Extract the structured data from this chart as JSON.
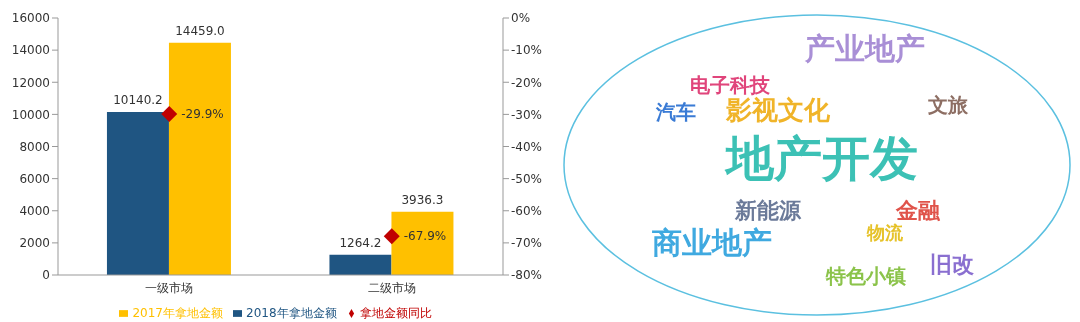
{
  "chart_data": [
    {
      "type": "bar",
      "categories": [
        "一级市场",
        "二级市场"
      ],
      "series": [
        {
          "name": "2018年拿地金额",
          "color": "#1f5582",
          "values": [
            10140.2,
            1264.2
          ],
          "value_labels": [
            "10140.2",
            "1264.2"
          ]
        },
        {
          "name": "2017年拿地金额",
          "color": "#ffc000",
          "values": [
            14459.0,
            3936.3
          ],
          "value_labels": [
            "14459.0",
            "3936.3"
          ]
        },
        {
          "name": "拿地金额同比",
          "type": "scatter",
          "axis": "y2",
          "color": "#c00000",
          "marker": "diamond",
          "values": [
            -29.9,
            -67.9
          ],
          "value_labels": [
            "-29.9%",
            "-67.9%"
          ]
        }
      ],
      "ylim": [
        0,
        16000
      ],
      "yticks": [
        0,
        2000,
        4000,
        6000,
        8000,
        10000,
        12000,
        14000,
        16000
      ],
      "y2lim": [
        -80,
        0
      ],
      "y2ticks": [
        {
          "value": 0,
          "label": "0%"
        },
        {
          "value": -10,
          "label": "-10%"
        },
        {
          "value": -20,
          "label": "-20%"
        },
        {
          "value": -30,
          "label": "-30%"
        },
        {
          "value": -40,
          "label": "-40%"
        },
        {
          "value": -50,
          "label": "-50%"
        },
        {
          "value": -60,
          "label": "-60%"
        },
        {
          "value": -70,
          "label": "-70%"
        },
        {
          "value": -80,
          "label": "-80%"
        }
      ],
      "legend": "bottom",
      "grid": false
    },
    {
      "type": "other",
      "annotations": [
        "产业地产",
        "电子科技",
        "文旅",
        "汽车",
        "影视文化",
        "地产开发",
        "新能源",
        "金融",
        "商业地产",
        "物流",
        "旧改",
        "特色小镇"
      ]
    }
  ]
}
